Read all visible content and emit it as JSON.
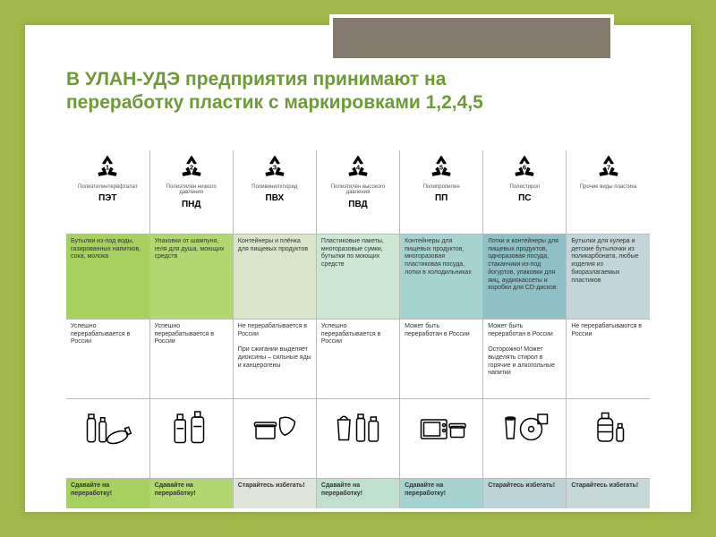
{
  "title": "В УЛАН-УДЭ предприятия принимают на переработку пластик с маркировками 1,2,4,5",
  "action_recycle": "Сдавайте на переработку!",
  "action_avoid": "Старайтесь избегать!",
  "columns": [
    {
      "num": "1",
      "type_name": "Полиэтилентерефталат",
      "abbr": "ПЭТ",
      "usage_bg": "#a6d15e",
      "usage": "Бутылки из-под воды, газированных напитков, сока, молока",
      "recy": "Успешно перерабатывается в России",
      "action_bg": "#a6d15e",
      "action_key": "action_recycle"
    },
    {
      "num": "2",
      "type_name": "Полиэтилен низкого давления",
      "abbr": "ПНД",
      "usage_bg": "#b1d770",
      "usage": "Упаковки от шампуня, геля для душа, моющих средств",
      "recy": "Успешно перерабатывается в России",
      "action_bg": "#b1d770",
      "action_key": "action_recycle"
    },
    {
      "num": "3",
      "type_name": "Поливинилхлорид",
      "abbr": "ПВХ",
      "usage_bg": "#d9e5c9",
      "usage": "Контейнеры и плёнка для пищевых продуктов",
      "recy": "Не перерабатывается в России\nПри сжигании выделяет диоксины – сильные яды и канцерогены",
      "action_bg": "#dee4da",
      "action_key": "action_avoid"
    },
    {
      "num": "4",
      "type_name": "Полиэтилен высокого давления",
      "abbr": "ПВД",
      "usage_bg": "#cce7d4",
      "usage": "Пластиковые пакеты, многоразовые сумки, бутылки по моющих средств",
      "recy": "Успешно перерабатывается в России",
      "action_bg": "#bfe0cf",
      "action_key": "action_recycle"
    },
    {
      "num": "5",
      "type_name": "Полипропилен",
      "abbr": "ПП",
      "usage_bg": "#a6d3cf",
      "usage": "Контейнеры для пищевых продуктов, многоразовая пластиковая посуда, лотки в холодильниках",
      "recy": "Может быть переработан в России",
      "action_bg": "#a6d3cf",
      "action_key": "action_recycle"
    },
    {
      "num": "6",
      "type_name": "Полистирол",
      "abbr": "ПС",
      "usage_bg": "#8ec0c5",
      "usage": "Лотки и контейнеры для пищевых продуктов, одноразовая посуда, стаканчики из-под йогуртов, упаковки для яиц, аудиокассеты и коробки для CD-дисков",
      "recy": "Может быть переработан в России\nОсторожно! Может выделять стирол в горячие и алкогольные напитки",
      "action_bg": "#bcd4d7",
      "action_key": "action_avoid"
    },
    {
      "num": "7",
      "type_name": "Прочие виды пластика",
      "abbr": "",
      "usage_bg": "#c2d6d9",
      "usage": "Бутылки для кулера и детские бутылочки из поликарбоната, любые изделия из биоразлагаемых пластиков",
      "recy": "Не перерабатываются в России",
      "action_bg": "#c7d8da",
      "action_key": "action_avoid"
    }
  ]
}
